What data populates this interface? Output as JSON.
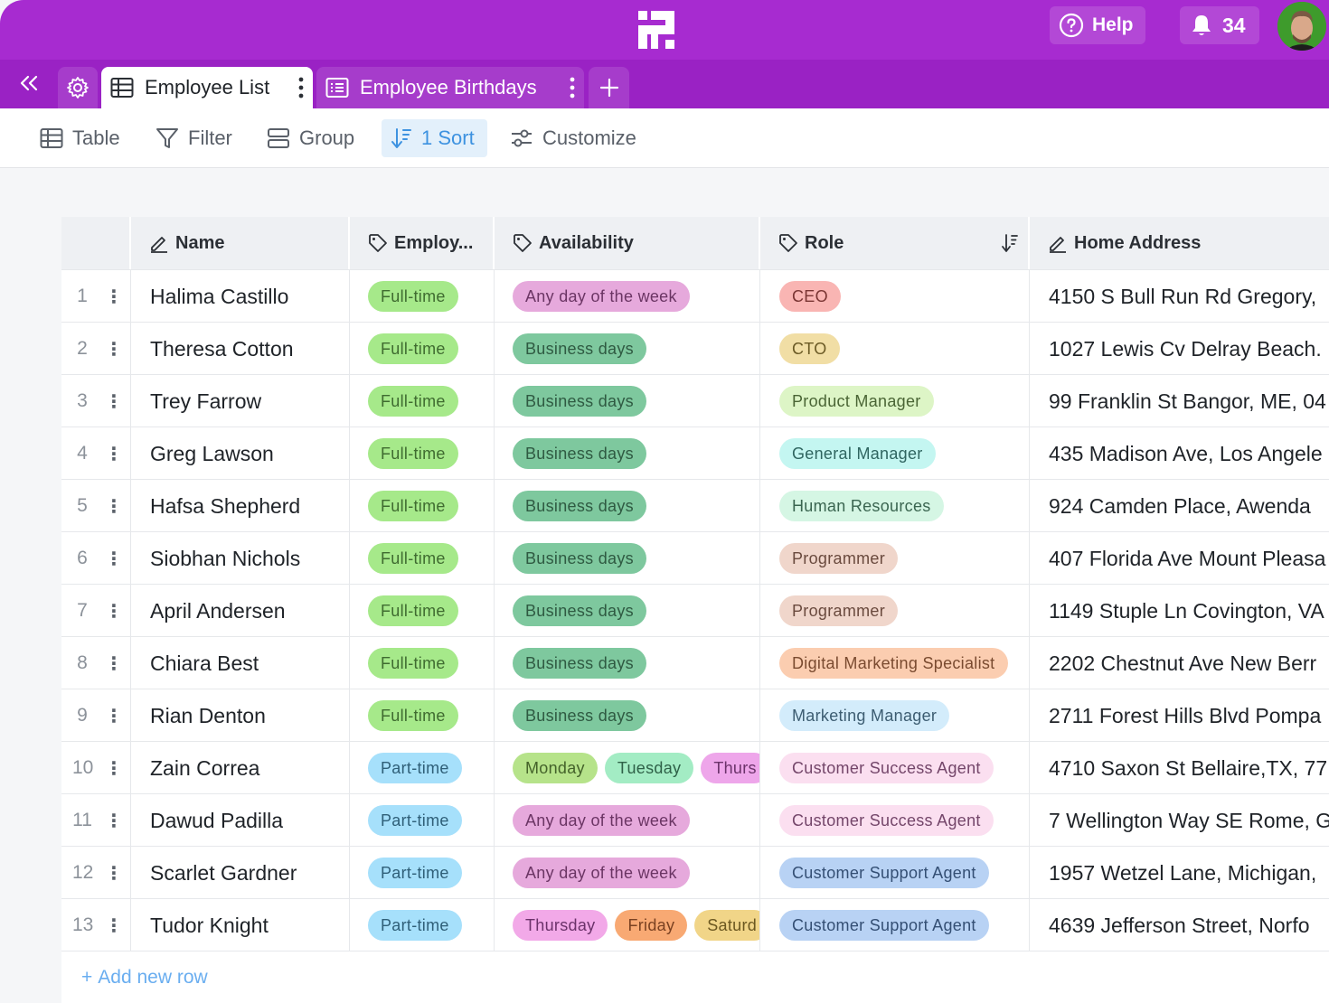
{
  "header": {
    "help_label": "Help",
    "notification_count": "34"
  },
  "tabs": [
    {
      "label": "Employee List",
      "active": true
    },
    {
      "label": "Employee Birthdays",
      "active": false
    }
  ],
  "toolbar": {
    "table_label": "Table",
    "filter_label": "Filter",
    "group_label": "Group",
    "sort_label": "1 Sort",
    "customize_label": "Customize"
  },
  "columns": {
    "name": "Name",
    "employment": "Employ...",
    "availability": "Availability",
    "role": "Role",
    "address": "Home Address"
  },
  "rows": [
    {
      "num": "1",
      "name": "Halima Castillo",
      "employment": "Full-time",
      "availability": [
        "Any day of the week"
      ],
      "role": "CEO",
      "address": "4150 S Bull Run Rd Gregory,"
    },
    {
      "num": "2",
      "name": "Theresa Cotton",
      "employment": "Full-time",
      "availability": [
        "Business days"
      ],
      "role": "CTO",
      "address": "1027 Lewis Cv Delray Beach."
    },
    {
      "num": "3",
      "name": "Trey Farrow",
      "employment": "Full-time",
      "availability": [
        "Business days"
      ],
      "role": "Product Manager",
      "address": "99 Franklin St Bangor, ME, 04"
    },
    {
      "num": "4",
      "name": "Greg Lawson",
      "employment": "Full-time",
      "availability": [
        "Business days"
      ],
      "role": "General Manager",
      "address": "435 Madison Ave, Los Angele"
    },
    {
      "num": "5",
      "name": "Hafsa Shepherd",
      "employment": "Full-time",
      "availability": [
        "Business days"
      ],
      "role": "Human Resources",
      "address": "924  Camden Place, Awenda"
    },
    {
      "num": "6",
      "name": "Siobhan Nichols",
      "employment": "Full-time",
      "availability": [
        "Business days"
      ],
      "role": "Programmer",
      "address": "407 Florida Ave Mount Pleasa"
    },
    {
      "num": "7",
      "name": "April Andersen",
      "employment": "Full-time",
      "availability": [
        "Business days"
      ],
      "role": "Programmer",
      "address": "1149 Stuple Ln Covington, VA"
    },
    {
      "num": "8",
      "name": "Chiara Best",
      "employment": "Full-time",
      "availability": [
        "Business days"
      ],
      "role": "Digital Marketing Specialist",
      "address": "2202 Chestnut Ave New Berr"
    },
    {
      "num": "9",
      "name": "Rian Denton",
      "employment": "Full-time",
      "availability": [
        "Business days"
      ],
      "role": "Marketing Manager",
      "address": "2711 Forest Hills Blvd Pompa"
    },
    {
      "num": "10",
      "name": "Zain Correa",
      "employment": "Part-time",
      "availability": [
        "Monday",
        "Tuesday",
        "Thurs"
      ],
      "role": "Customer Success Agent",
      "address": "4710 Saxon St Bellaire,TX, 77"
    },
    {
      "num": "11",
      "name": "Dawud Padilla",
      "employment": "Part-time",
      "availability": [
        "Any day of the week"
      ],
      "role": "Customer Success Agent",
      "address": "7 Wellington Way SE Rome, G"
    },
    {
      "num": "12",
      "name": "Scarlet Gardner",
      "employment": "Part-time",
      "availability": [
        "Any day of the week"
      ],
      "role": "Customer Support Agent",
      "address": "1957  Wetzel Lane, Michigan,"
    },
    {
      "num": "13",
      "name": "Tudor Knight",
      "employment": "Part-time",
      "availability": [
        "Thursday",
        "Friday",
        "Saturd"
      ],
      "role": "Customer Support Agent",
      "address": "4639  Jefferson Street, Norfo"
    }
  ],
  "add_row_label": "Add new row",
  "tag_colors": {
    "Full-time": {
      "bg": "#a6e98a",
      "fg": "#3f6b30"
    },
    "Part-time": {
      "bg": "#a6e0fb",
      "fg": "#2f5f78"
    },
    "Any day of the week": {
      "bg": "#e6a9dc",
      "fg": "#6b3564"
    },
    "Business days": {
      "bg": "#7ec89e",
      "fg": "#2f5a42"
    },
    "Monday": {
      "bg": "#b6e38a",
      "fg": "#44622a"
    },
    "Tuesday": {
      "bg": "#a3ecc4",
      "fg": "#2f6148"
    },
    "Thurs": {
      "bg": "#eea6ea",
      "fg": "#6b326a"
    },
    "Thursday": {
      "bg": "#f2a9e8",
      "fg": "#6b326a"
    },
    "Friday": {
      "bg": "#f8a973",
      "fg": "#7a4121"
    },
    "Saturd": {
      "bg": "#f1d588",
      "fg": "#6b5720"
    },
    "CEO": {
      "bg": "#f9b5b3",
      "fg": "#7a3533"
    },
    "CTO": {
      "bg": "#f1dea5",
      "fg": "#6b5a25"
    },
    "Product Manager": {
      "bg": "#ddf5c6",
      "fg": "#4a6535"
    },
    "General Manager": {
      "bg": "#c4f6f1",
      "fg": "#2f6560"
    },
    "Human Resources": {
      "bg": "#d5f6e4",
      "fg": "#3a6550"
    },
    "Programmer": {
      "bg": "#f0d6cb",
      "fg": "#6a4a3e"
    },
    "Digital Marketing Specialist": {
      "bg": "#fbcdb0",
      "fg": "#7a4b30"
    },
    "Marketing Manager": {
      "bg": "#d3ecfb",
      "fg": "#3d5d72"
    },
    "Customer Success Agent": {
      "bg": "#fbdff0",
      "fg": "#74466a"
    },
    "Customer Support Agent": {
      "bg": "#b8d2f4",
      "fg": "#344f74"
    }
  }
}
